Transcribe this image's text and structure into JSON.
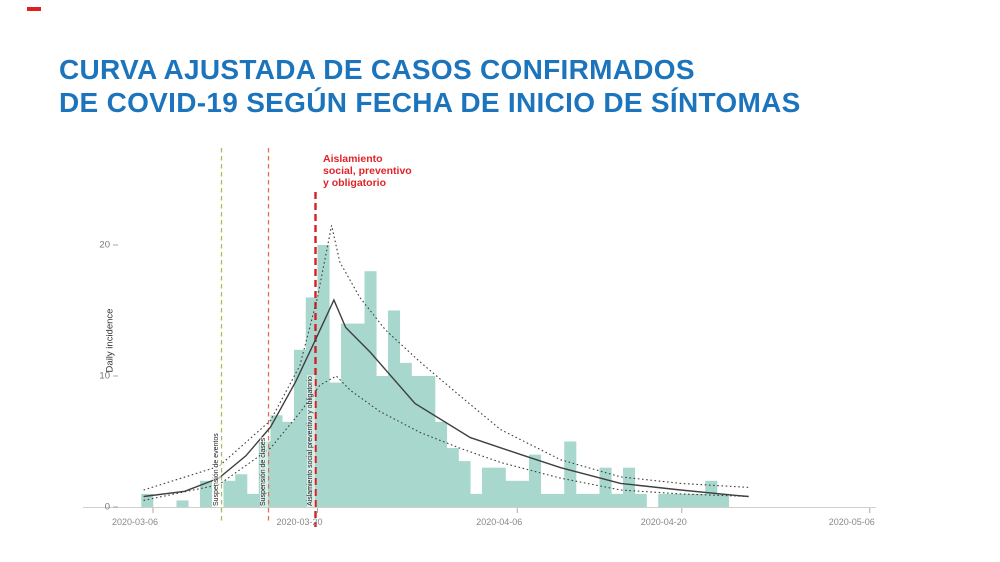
{
  "title": {
    "line1": "CURVA AJUSTADA DE CASOS CONFIRMADOS",
    "line2": "DE COVID-19 SEGÚN FECHA DE INICIO DE SÍNTOMAS",
    "color": "#1c75bc"
  },
  "annotation": {
    "lines": [
      "Aislamiento",
      "social, preventivo",
      "y obligatorio"
    ],
    "color": "#e02328"
  },
  "chart_data": {
    "type": "bar",
    "title": "Curva ajustada de casos confirmados de COVID-19 según fecha de inicio de síntomas",
    "xlabel": "",
    "ylabel": "Daily incidence",
    "ylim": [
      0,
      23
    ],
    "yticks": [
      0,
      10,
      20
    ],
    "xticks": [
      "2020-03-06",
      "2020-03-20",
      "2020-04-06",
      "2020-04-20",
      "2020-05-06"
    ],
    "grid": false,
    "legend": "none",
    "bar_color": "#a7d7cd",
    "x_origin_date": "2020-03-05",
    "bars": [
      {
        "date": "2020-03-05",
        "value": 1
      },
      {
        "date": "2020-03-08",
        "value": 0.5
      },
      {
        "date": "2020-03-10",
        "value": 2
      },
      {
        "date": "2020-03-12",
        "value": 2
      },
      {
        "date": "2020-03-13",
        "value": 2.5
      },
      {
        "date": "2020-03-14",
        "value": 1
      },
      {
        "date": "2020-03-15",
        "value": 5
      },
      {
        "date": "2020-03-16",
        "value": 7
      },
      {
        "date": "2020-03-17",
        "value": 6.5
      },
      {
        "date": "2020-03-18",
        "value": 12
      },
      {
        "date": "2020-03-19",
        "value": 16
      },
      {
        "date": "2020-03-20",
        "value": 20
      },
      {
        "date": "2020-03-21",
        "value": 9.5
      },
      {
        "date": "2020-03-22",
        "value": 14
      },
      {
        "date": "2020-03-23",
        "value": 14
      },
      {
        "date": "2020-03-24",
        "value": 18
      },
      {
        "date": "2020-03-25",
        "value": 10
      },
      {
        "date": "2020-03-26",
        "value": 15
      },
      {
        "date": "2020-03-27",
        "value": 11
      },
      {
        "date": "2020-03-28",
        "value": 10
      },
      {
        "date": "2020-03-29",
        "value": 10
      },
      {
        "date": "2020-03-30",
        "value": 6.5
      },
      {
        "date": "2020-03-31",
        "value": 4.5
      },
      {
        "date": "2020-04-01",
        "value": 3.5
      },
      {
        "date": "2020-04-02",
        "value": 1
      },
      {
        "date": "2020-04-03",
        "value": 3
      },
      {
        "date": "2020-04-04",
        "value": 3
      },
      {
        "date": "2020-04-05",
        "value": 2
      },
      {
        "date": "2020-04-06",
        "value": 2
      },
      {
        "date": "2020-04-07",
        "value": 4
      },
      {
        "date": "2020-04-08",
        "value": 1
      },
      {
        "date": "2020-04-09",
        "value": 1
      },
      {
        "date": "2020-04-10",
        "value": 5
      },
      {
        "date": "2020-04-11",
        "value": 1
      },
      {
        "date": "2020-04-12",
        "value": 1
      },
      {
        "date": "2020-04-13",
        "value": 3
      },
      {
        "date": "2020-04-14",
        "value": 1
      },
      {
        "date": "2020-04-15",
        "value": 3
      },
      {
        "date": "2020-04-16",
        "value": 1
      },
      {
        "date": "2020-04-18",
        "value": 1
      },
      {
        "date": "2020-04-19",
        "value": 1
      },
      {
        "date": "2020-04-20",
        "value": 1
      },
      {
        "date": "2020-04-21",
        "value": 1
      },
      {
        "date": "2020-04-22",
        "value": 2
      },
      {
        "date": "2020-04-23",
        "value": 1
      }
    ],
    "events": [
      {
        "date": "2020-03-12",
        "label": "Suspensión de eventos",
        "color": "#a3bf55",
        "style": "dashed"
      },
      {
        "date": "2020-03-16",
        "label": "Suspensión de clases",
        "color": "#e4714e",
        "style": "dashed"
      },
      {
        "date": "2020-03-20",
        "label": "Aislamiento social preventivo y obligatorio",
        "color": "#d42026",
        "style": "dashed-bold"
      }
    ],
    "series": [
      {
        "name": "fitted-mean",
        "style": "solid",
        "points": [
          [
            0.2,
            0.8
          ],
          [
            3.7,
            1.2
          ],
          [
            6.6,
            2.2
          ],
          [
            8.9,
            3.9
          ],
          [
            11,
            6.1
          ],
          [
            13.1,
            9.5
          ],
          [
            14.8,
            12.7
          ],
          [
            16.4,
            15.8
          ],
          [
            17.4,
            13.7
          ],
          [
            19.5,
            11.8
          ],
          [
            23.3,
            7.9
          ],
          [
            28,
            5.3
          ],
          [
            32.3,
            4
          ],
          [
            35.7,
            3
          ],
          [
            40.8,
            1.8
          ],
          [
            45.9,
            1.3
          ],
          [
            50.4,
            0.9
          ],
          [
            51.7,
            0.8
          ]
        ]
      },
      {
        "name": "upper-ci",
        "style": "dotted",
        "points": [
          [
            0.2,
            1.3
          ],
          [
            6.6,
            3.1
          ],
          [
            11,
            6.6
          ],
          [
            13.5,
            10.8
          ],
          [
            15,
            16
          ],
          [
            16.2,
            21.5
          ],
          [
            16.9,
            18.7
          ],
          [
            18.6,
            16
          ],
          [
            20.8,
            13.5
          ],
          [
            23.7,
            11.1
          ],
          [
            27.1,
            8.5
          ],
          [
            30.6,
            5.9
          ],
          [
            35.7,
            3.6
          ],
          [
            40.8,
            2.3
          ],
          [
            45.9,
            1.8
          ],
          [
            51.7,
            1.5
          ]
        ]
      },
      {
        "name": "lower-ci",
        "style": "dotted",
        "points": [
          [
            0.2,
            0.5
          ],
          [
            6.6,
            1.7
          ],
          [
            11,
            4.5
          ],
          [
            13.5,
            7.2
          ],
          [
            15.2,
            9.3
          ],
          [
            16.6,
            10
          ],
          [
            17.8,
            8.9
          ],
          [
            20.3,
            7.3
          ],
          [
            23.7,
            5.7
          ],
          [
            27.1,
            4.5
          ],
          [
            30.6,
            3.4
          ],
          [
            35.7,
            2.2
          ],
          [
            40.8,
            1.3
          ],
          [
            45.9,
            1
          ],
          [
            51.7,
            0.8
          ]
        ]
      }
    ]
  }
}
